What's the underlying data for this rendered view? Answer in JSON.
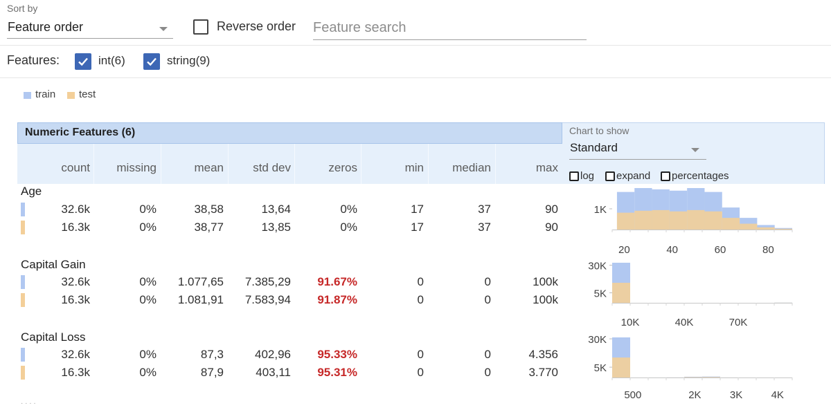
{
  "toolbar": {
    "sort_caption": "Sort by",
    "sort_value": "Feature order",
    "reverse_label": "Reverse order",
    "reverse_checked": false,
    "search_placeholder": "Feature search",
    "search_value": ""
  },
  "features_filter": {
    "label": "Features:",
    "int_label": "int(6)",
    "int_checked": true,
    "string_label": "string(9)",
    "string_checked": true
  },
  "legend": {
    "train": "train",
    "test": "test",
    "train_color": "#b1c8f1",
    "test_color": "#f3cf99"
  },
  "section": {
    "title": "Numeric Features (6)",
    "columns": [
      "count",
      "missing",
      "mean",
      "std dev",
      "zeros",
      "min",
      "median",
      "max"
    ]
  },
  "chart_options": {
    "caption": "Chart to show",
    "value": "Standard",
    "log": "log",
    "expand": "expand",
    "percentages": "percentages"
  },
  "features": [
    {
      "name": "Age",
      "rows": [
        {
          "split": "train",
          "count": "32.6k",
          "missing": "0%",
          "mean": "38,58",
          "std_dev": "13,64",
          "zeros": "0%",
          "zeros_high": false,
          "min": "17",
          "median": "37",
          "max": "90"
        },
        {
          "split": "test",
          "count": "16.3k",
          "missing": "0%",
          "mean": "38,77",
          "std_dev": "13,85",
          "zeros": "0%",
          "zeros_high": false,
          "min": "17",
          "median": "37",
          "max": "90"
        }
      ]
    },
    {
      "name": "Capital Gain",
      "rows": [
        {
          "split": "train",
          "count": "32.6k",
          "missing": "0%",
          "mean": "1.077,65",
          "std_dev": "7.385,29",
          "zeros": "91.67%",
          "zeros_high": true,
          "min": "0",
          "median": "0",
          "max": "100k"
        },
        {
          "split": "test",
          "count": "16.3k",
          "missing": "0%",
          "mean": "1.081,91",
          "std_dev": "7.583,94",
          "zeros": "91.87%",
          "zeros_high": true,
          "min": "0",
          "median": "0",
          "max": "100k"
        }
      ]
    },
    {
      "name": "Capital Loss",
      "rows": [
        {
          "split": "train",
          "count": "32.6k",
          "missing": "0%",
          "mean": "87,3",
          "std_dev": "402,96",
          "zeros": "95.33%",
          "zeros_high": true,
          "min": "0",
          "median": "0",
          "max": "4.356"
        },
        {
          "split": "test",
          "count": "16.3k",
          "missing": "0%",
          "mean": "87,9",
          "std_dev": "403,11",
          "zeros": "95.31%",
          "zeros_high": true,
          "min": "0",
          "median": "0",
          "max": "3.770"
        }
      ]
    }
  ],
  "chart_data": [
    {
      "type": "bar",
      "x_ticks": [
        "20",
        "40",
        "60",
        "80"
      ],
      "y_ticks": [
        "1K"
      ],
      "xlim": [
        15,
        90
      ],
      "bin_edges": [
        17,
        24.3,
        31.6,
        38.9,
        46.2,
        53.5,
        60.8,
        68.1,
        75.4,
        82.7,
        90
      ],
      "series": [
        {
          "name": "train",
          "values": [
            2900,
            3200,
            3100,
            3000,
            3200,
            2900,
            1700,
            900,
            350,
            120
          ]
        },
        {
          "name": "test",
          "values": [
            1300,
            1450,
            1500,
            1400,
            1500,
            1400,
            900,
            450,
            170,
            60
          ]
        }
      ],
      "ylim": [
        0,
        3200
      ]
    },
    {
      "type": "bar",
      "x_ticks": [
        "10K",
        "40K",
        "70K"
      ],
      "y_ticks": [
        "30K",
        "5K"
      ],
      "xlim": [
        0,
        100000
      ],
      "bin_edges": [
        0,
        10000,
        20000,
        30000,
        40000,
        50000,
        60000,
        70000,
        80000,
        90000,
        100000
      ],
      "series": [
        {
          "name": "train",
          "values": [
            32000,
            10,
            10,
            5,
            5,
            5,
            5,
            5,
            5,
            160
          ]
        },
        {
          "name": "test",
          "values": [
            16000,
            5,
            5,
            3,
            3,
            3,
            3,
            3,
            3,
            80
          ]
        }
      ],
      "ylim": [
        0,
        32000
      ]
    },
    {
      "type": "bar",
      "x_ticks": [
        "500",
        "2K",
        "3K",
        "4K"
      ],
      "y_ticks": [
        "30K",
        "5K"
      ],
      "xlim": [
        0,
        4356
      ],
      "bin_edges": [
        0,
        435.6,
        871.2,
        1306.8,
        1742.4,
        2178,
        2613.6,
        3049.2,
        3484.8,
        3920.4,
        4356
      ],
      "series": [
        {
          "name": "train",
          "values": [
            31100,
            10,
            30,
            80,
            600,
            750,
            40,
            10,
            5,
            5
          ]
        },
        {
          "name": "test",
          "values": [
            15500,
            5,
            15,
            40,
            300,
            370,
            20,
            5,
            3,
            3
          ]
        }
      ],
      "ylim": [
        0,
        31100
      ]
    }
  ]
}
